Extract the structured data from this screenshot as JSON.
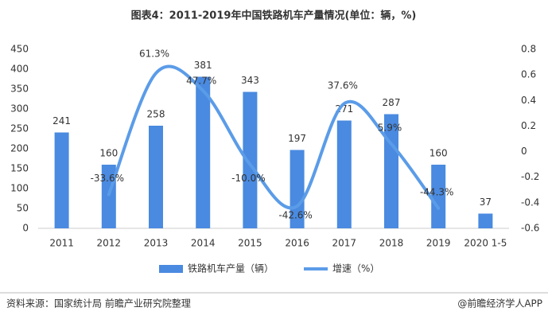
{
  "chart_data": {
    "type": "bar-line",
    "title": "图表4：2011-2019年中国铁路机车产量情况(单位：辆，%)",
    "categories": [
      "2011",
      "2012",
      "2013",
      "2014",
      "2015",
      "2016",
      "2017",
      "2018",
      "2019",
      "2020 1-5"
    ],
    "series": [
      {
        "name": "铁路机车产量（辆）",
        "type": "bar",
        "color": "#4a8ae0",
        "values": [
          241,
          160,
          258,
          381,
          343,
          197,
          271,
          287,
          160,
          37
        ]
      },
      {
        "name": "增速（%）",
        "type": "line",
        "axis": "y2",
        "color": "#5b9ce8",
        "values": [
          null,
          -0.336,
          0.613,
          0.477,
          -0.1,
          -0.426,
          0.376,
          0.059,
          -0.443,
          null
        ],
        "value_labels": [
          null,
          "-33.6%",
          "61.3%",
          "47.7%",
          "-10.0%",
          "-42.6%",
          "37.6%",
          "5.9%",
          "-44.3%",
          null
        ]
      }
    ],
    "ylim": [
      0,
      450
    ],
    "yticks": [
      0,
      50,
      100,
      150,
      200,
      250,
      300,
      350,
      400,
      450
    ],
    "y2lim": [
      -0.6,
      0.8
    ],
    "y2ticks": [
      -0.6,
      -0.4,
      -0.2,
      0,
      0.2,
      0.4,
      0.6,
      0.8
    ],
    "source": "资料来源：国家统计局 前瞻产业研究院整理",
    "brand": "@前瞻经济学人APP"
  }
}
